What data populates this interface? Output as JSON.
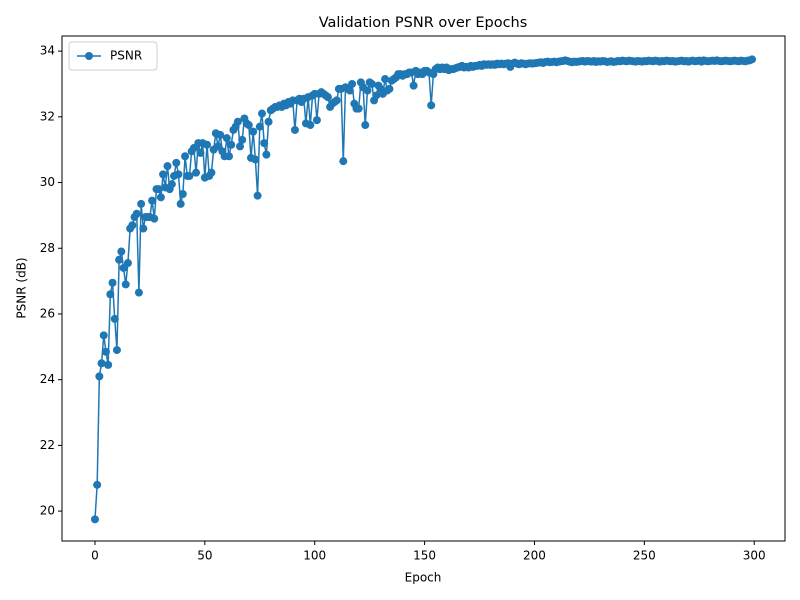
{
  "chart_data": {
    "type": "line",
    "title": "Validation PSNR over Epochs",
    "xlabel": "Epoch",
    "ylabel": "PSNR (dB)",
    "x": [
      0,
      1,
      2,
      3,
      4,
      5,
      6,
      7,
      8,
      9,
      10,
      11,
      12,
      13,
      14,
      15,
      16,
      17,
      18,
      19,
      20,
      21,
      22,
      23,
      24,
      25,
      26,
      27,
      28,
      29,
      30,
      31,
      32,
      33,
      34,
      35,
      36,
      37,
      38,
      39,
      40,
      41,
      42,
      43,
      44,
      45,
      46,
      47,
      48,
      49,
      50,
      51,
      52,
      53,
      54,
      55,
      56,
      57,
      58,
      59,
      60,
      61,
      62,
      63,
      64,
      65,
      66,
      67,
      68,
      69,
      70,
      71,
      72,
      73,
      74,
      75,
      76,
      77,
      78,
      79,
      80,
      81,
      82,
      83,
      84,
      85,
      86,
      87,
      88,
      89,
      90,
      91,
      92,
      93,
      94,
      95,
      96,
      97,
      98,
      99,
      100,
      101,
      102,
      103,
      104,
      105,
      106,
      107,
      108,
      109,
      110,
      111,
      112,
      113,
      114,
      115,
      116,
      117,
      118,
      119,
      120,
      121,
      122,
      123,
      124,
      125,
      126,
      127,
      128,
      129,
      130,
      131,
      132,
      133,
      134,
      135,
      136,
      137,
      138,
      139,
      140,
      141,
      142,
      143,
      144,
      145,
      146,
      147,
      148,
      149,
      150,
      151,
      152,
      153,
      154,
      155,
      156,
      157,
      158,
      159,
      160,
      161,
      162,
      163,
      164,
      165,
      166,
      167,
      168,
      169,
      170,
      171,
      172,
      173,
      174,
      175,
      176,
      177,
      178,
      179,
      180,
      181,
      182,
      183,
      184,
      185,
      186,
      187,
      188,
      189,
      190,
      191,
      192,
      193,
      194,
      195,
      196,
      197,
      198,
      199,
      200,
      201,
      202,
      203,
      204,
      205,
      206,
      207,
      208,
      209,
      210,
      211,
      212,
      213,
      214,
      215,
      216,
      217,
      218,
      219,
      220,
      221,
      222,
      223,
      224,
      225,
      226,
      227,
      228,
      229,
      230,
      231,
      232,
      233,
      234,
      235,
      236,
      237,
      238,
      239,
      240,
      241,
      242,
      243,
      244,
      245,
      246,
      247,
      248,
      249,
      250,
      251,
      252,
      253,
      254,
      255,
      256,
      257,
      258,
      259,
      260,
      261,
      262,
      263,
      264,
      265,
      266,
      267,
      268,
      269,
      270,
      271,
      272,
      273,
      274,
      275,
      276,
      277,
      278,
      279,
      280,
      281,
      282,
      283,
      284,
      285,
      286,
      287,
      288,
      289,
      290,
      291,
      292,
      293,
      294,
      295,
      296,
      297,
      298,
      299
    ],
    "series": [
      {
        "name": "PSNR",
        "color": "#1f77b4",
        "values": [
          19.75,
          20.8,
          24.1,
          24.5,
          25.35,
          24.85,
          24.45,
          26.6,
          26.95,
          25.85,
          24.9,
          27.65,
          27.9,
          27.4,
          26.9,
          27.55,
          28.6,
          28.7,
          28.95,
          29.05,
          26.65,
          29.35,
          28.6,
          28.95,
          28.95,
          28.95,
          29.45,
          28.9,
          29.8,
          29.8,
          29.55,
          30.25,
          29.85,
          30.5,
          29.8,
          29.95,
          30.2,
          30.6,
          30.25,
          29.35,
          29.65,
          30.8,
          30.2,
          30.2,
          30.95,
          31.05,
          30.3,
          31.2,
          30.9,
          31.2,
          30.15,
          31.15,
          30.2,
          30.3,
          31.0,
          31.5,
          31.1,
          31.45,
          30.95,
          30.8,
          31.35,
          30.8,
          31.15,
          31.6,
          31.7,
          31.85,
          31.1,
          31.3,
          31.95,
          31.8,
          31.75,
          30.75,
          31.55,
          30.7,
          29.6,
          31.7,
          32.1,
          31.2,
          30.85,
          31.85,
          32.2,
          32.25,
          32.3,
          32.3,
          32.35,
          32.3,
          32.4,
          32.35,
          32.45,
          32.4,
          32.5,
          31.6,
          32.5,
          32.55,
          32.45,
          32.55,
          31.8,
          32.6,
          31.75,
          32.65,
          32.7,
          31.9,
          32.7,
          32.75,
          32.7,
          32.65,
          32.6,
          32.3,
          32.4,
          32.45,
          32.5,
          32.85,
          32.85,
          30.65,
          32.9,
          32.85,
          32.8,
          33.0,
          32.4,
          32.25,
          32.25,
          33.05,
          32.9,
          31.75,
          32.8,
          33.05,
          33.0,
          32.5,
          32.65,
          32.95,
          32.85,
          32.7,
          33.15,
          32.8,
          32.85,
          33.1,
          33.15,
          33.2,
          33.3,
          33.3,
          33.25,
          33.3,
          33.3,
          33.35,
          33.35,
          32.95,
          33.4,
          33.3,
          33.35,
          33.3,
          33.4,
          33.4,
          33.35,
          32.35,
          33.3,
          33.45,
          33.5,
          33.45,
          33.5,
          33.45,
          33.5,
          33.42,
          33.45,
          33.45,
          33.48,
          33.5,
          33.52,
          33.55,
          33.5,
          33.52,
          33.5,
          33.55,
          33.52,
          33.55,
          33.55,
          33.58,
          33.55,
          33.6,
          33.58,
          33.6,
          33.58,
          33.6,
          33.58,
          33.62,
          33.6,
          33.62,
          33.6,
          33.62,
          33.63,
          33.52,
          33.62,
          33.65,
          33.62,
          33.6,
          33.63,
          33.62,
          33.6,
          33.62,
          33.63,
          33.62,
          33.63,
          33.64,
          33.65,
          33.66,
          33.64,
          33.67,
          33.68,
          33.66,
          33.67,
          33.68,
          33.66,
          33.68,
          33.69,
          33.7,
          33.72,
          33.7,
          33.68,
          33.66,
          33.68,
          33.67,
          33.68,
          33.69,
          33.7,
          33.68,
          33.7,
          33.69,
          33.68,
          33.7,
          33.67,
          33.69,
          33.68,
          33.7,
          33.69,
          33.67,
          33.68,
          33.69,
          33.67,
          33.68,
          33.7,
          33.69,
          33.71,
          33.7,
          33.69,
          33.71,
          33.7,
          33.69,
          33.68,
          33.7,
          33.69,
          33.68,
          33.7,
          33.69,
          33.71,
          33.7,
          33.69,
          33.71,
          33.7,
          33.68,
          33.7,
          33.69,
          33.71,
          33.7,
          33.69,
          33.7,
          33.68,
          33.69,
          33.7,
          33.71,
          33.69,
          33.7,
          33.68,
          33.7,
          33.71,
          33.69,
          33.7,
          33.71,
          33.68,
          33.72,
          33.7,
          33.69,
          33.7,
          33.71,
          33.7,
          33.72,
          33.7,
          33.69,
          33.7,
          33.71,
          33.7,
          33.69,
          33.7,
          33.71,
          33.7,
          33.69,
          33.71,
          33.7,
          33.69,
          33.71,
          33.72,
          33.75
        ]
      }
    ],
    "xlim": [
      -15,
      314
    ],
    "ylim": [
      19.09,
      34.46
    ],
    "xticks": [
      0,
      50,
      100,
      150,
      200,
      250,
      300
    ],
    "yticks": [
      20,
      22,
      24,
      26,
      28,
      30,
      32,
      34
    ],
    "legend": "upper left",
    "grid": false
  }
}
